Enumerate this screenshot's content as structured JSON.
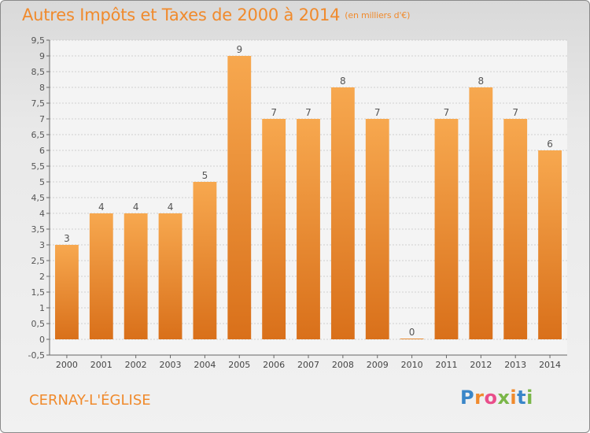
{
  "title": "Autres Impôts et Taxes de 2000 à 2014",
  "title_unit": "(en milliers d'€)",
  "place": "CERNAY-L'ÉGLISE",
  "brand": {
    "letters": [
      "P",
      "r",
      "o",
      "x",
      "i",
      "t",
      "i"
    ],
    "colors": [
      "#3a86c8",
      "#f08a2c",
      "#e94e8a",
      "#7ab648",
      "#f08a2c",
      "#3a86c8",
      "#7ab648"
    ]
  },
  "colors": {
    "bar_light": "#f7a84f",
    "bar_dark": "#d9701a",
    "text": "#f08a2c",
    "grid": "#cfcfcf"
  },
  "chart_data": {
    "type": "bar",
    "categories": [
      "2000",
      "2001",
      "2002",
      "2003",
      "2004",
      "2005",
      "2006",
      "2007",
      "2008",
      "2009",
      "2010",
      "2011",
      "2012",
      "2013",
      "2014"
    ],
    "values": [
      3,
      4,
      4,
      4,
      5,
      9,
      7,
      7,
      8,
      7,
      0,
      7,
      8,
      7,
      6
    ],
    "data_labels": [
      "3",
      "4",
      "4",
      "4",
      "5",
      "9",
      "7",
      "7",
      "8",
      "7",
      "0",
      "7",
      "8",
      "7",
      "6"
    ],
    "y_ticks": [
      "-0,5",
      "0",
      "0,5",
      "1",
      "1,5",
      "2",
      "2,5",
      "3",
      "3,5",
      "4",
      "4,5",
      "5",
      "5,5",
      "6",
      "6,5",
      "7",
      "7,5",
      "8",
      "8,5",
      "9",
      "9,5"
    ],
    "ylim": [
      -0.5,
      9.5
    ],
    "grid": true
  }
}
